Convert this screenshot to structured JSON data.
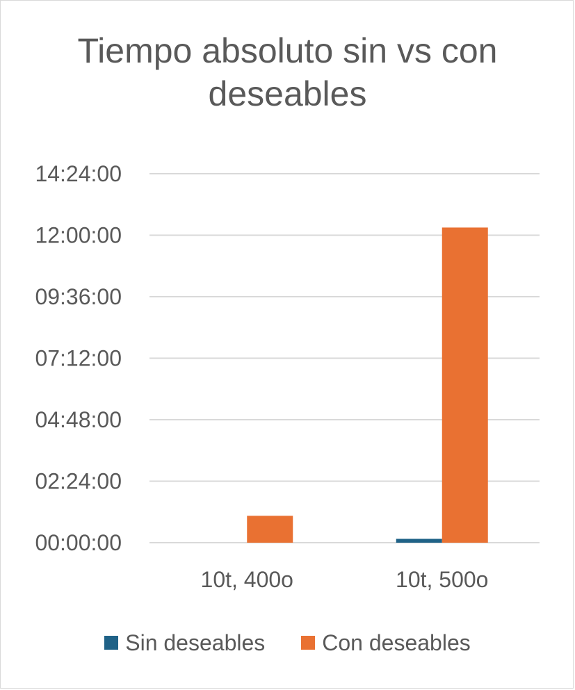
{
  "chart_data": {
    "type": "bar",
    "title": "Tiempo absoluto sin vs con deseables",
    "categories": [
      "10t, 400o",
      "10t, 500o"
    ],
    "series": [
      {
        "name": "Sin deseables",
        "values": [
          "00:00:00",
          "00:09:00"
        ],
        "values_hours": [
          0.0,
          0.15
        ],
        "color": "#1f6287"
      },
      {
        "name": "Con deseables",
        "values": [
          "01:03:00",
          "12:18:00"
        ],
        "values_hours": [
          1.05,
          12.3
        ],
        "color": "#e97132"
      }
    ],
    "y_ticks": [
      "00:00:00",
      "02:24:00",
      "04:48:00",
      "07:12:00",
      "09:36:00",
      "12:00:00",
      "14:24:00"
    ],
    "y_ticks_hours": [
      0,
      2.4,
      4.8,
      7.2,
      9.6,
      12.0,
      14.4
    ],
    "ylim_hours": [
      0,
      14.4
    ],
    "grid": true,
    "legend_position": "bottom"
  }
}
